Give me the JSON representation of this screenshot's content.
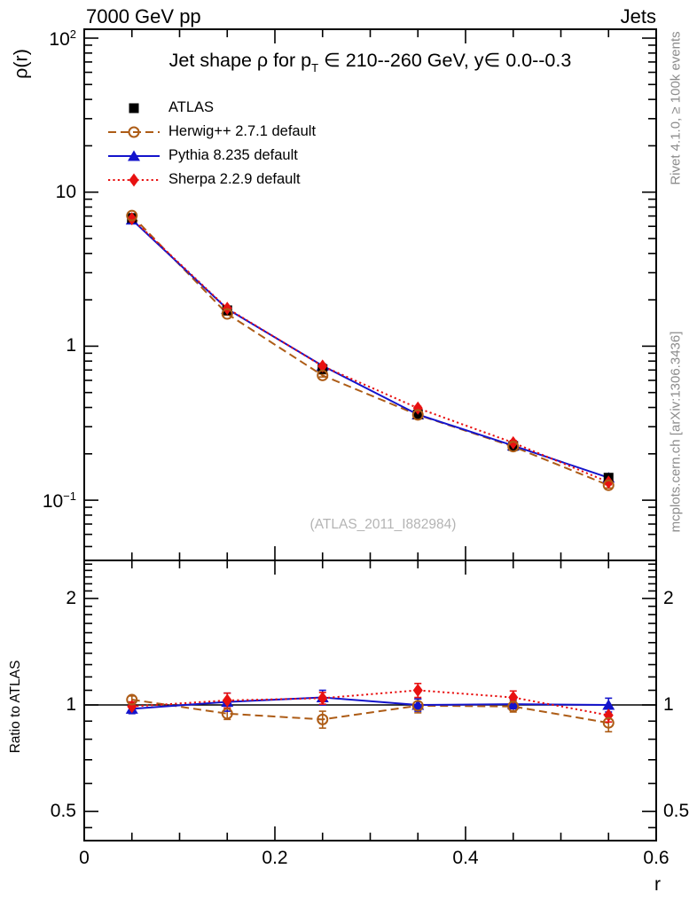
{
  "header": {
    "left": "7000 GeV pp",
    "right": "Jets"
  },
  "title": {
    "part1": "Jet shape ρ for p",
    "sub": "T",
    "part2": " ∈ 210--260 GeV, y∈ 0.0--0.3"
  },
  "watermark": "(ATLAS_2011_I882984)",
  "side_notes": {
    "top": "Rivet 4.1.0, ≥ 100k events",
    "bottom": "mcplots.cern.ch [arXiv:1306.3436]"
  },
  "colors": {
    "atlas": "#000000",
    "herwig": "#ad5c16",
    "pythia": "#1414cc",
    "sherpa": "#e81111",
    "frame": "#000000",
    "gray_note": "#8c8c8c",
    "watermark": "#b4b4b4"
  },
  "chart_data": {
    "type": "line",
    "title": "Jet shape ρ for p_T ∈ 210--260 GeV, y∈ 0.0--0.3",
    "xlabel": "r",
    "ylabel_main": "ρ(r)",
    "ylabel_ratio": "Ratio to ATLAS",
    "xlim": [
      0,
      0.6
    ],
    "x_minor_step": 0.05,
    "x_ticks": [
      {
        "value": 0,
        "label": "0"
      },
      {
        "value": 0.2,
        "label": "0.2"
      },
      {
        "value": 0.4,
        "label": "0.4"
      },
      {
        "value": 0.6,
        "label": "0.6"
      }
    ],
    "main_axis": {
      "scale": "log",
      "range": [
        0.041,
        114
      ],
      "major_ticks": [
        {
          "value": 100,
          "base": "10",
          "exp": "2"
        },
        {
          "value": 10,
          "base": "10",
          "exp": ""
        },
        {
          "value": 1,
          "base": "1",
          "exp": ""
        },
        {
          "value": 0.1,
          "base": "10",
          "exp": "−1"
        }
      ]
    },
    "ratio_axis": {
      "scale": "log",
      "range": [
        0.414,
        2.56
      ],
      "major_ticks": [
        {
          "value": 2,
          "label": "2"
        },
        {
          "value": 1,
          "label": "1"
        },
        {
          "value": 0.5,
          "label": "0.5"
        }
      ],
      "baseline": 1
    },
    "x": [
      0.05,
      0.15,
      0.25,
      0.35,
      0.45,
      0.55
    ],
    "legend_position": "top-left",
    "series": [
      {
        "name": "ATLAS",
        "marker": "square",
        "line": "none",
        "color_key": "atlas",
        "values": [
          6.8,
          1.71,
          0.71,
          0.36,
          0.225,
          0.14
        ],
        "errors": [
          0.18,
          0.05,
          0.018,
          0.01,
          0.007,
          0.005
        ]
      },
      {
        "name": "Herwig++ 2.7.1 default",
        "marker": "circle-open",
        "line": "dashed",
        "color_key": "herwig",
        "values": [
          7.04,
          1.62,
          0.646,
          0.358,
          0.223,
          0.125
        ],
        "errors": [
          0.1,
          0.03,
          0.015,
          0.009,
          0.006,
          0.005
        ],
        "ratio": [
          1.035,
          0.945,
          0.91,
          0.995,
          0.99,
          0.89
        ],
        "ratio_errors": [
          0.025,
          0.035,
          0.05,
          0.045,
          0.035,
          0.05
        ]
      },
      {
        "name": "Pythia 8.235 default",
        "marker": "triangle",
        "line": "solid",
        "color_key": "pythia",
        "values": [
          6.63,
          1.744,
          0.746,
          0.36,
          0.226,
          0.14
        ],
        "errors": [
          0.12,
          0.04,
          0.02,
          0.01,
          0.007,
          0.005
        ],
        "ratio": [
          0.975,
          1.02,
          1.05,
          1.0,
          1.005,
          1.0
        ],
        "ratio_errors": [
          0.03,
          0.06,
          0.05,
          0.04,
          0.03,
          0.045
        ]
      },
      {
        "name": "Sherpa 2.2.9 default",
        "marker": "diamond",
        "line": "dotted",
        "color_key": "sherpa",
        "values": [
          6.73,
          1.76,
          0.742,
          0.396,
          0.236,
          0.131
        ],
        "errors": [
          0.12,
          0.04,
          0.02,
          0.011,
          0.008,
          0.005
        ],
        "ratio": [
          0.99,
          1.03,
          1.045,
          1.1,
          1.05,
          0.935
        ],
        "ratio_errors": [
          0.03,
          0.05,
          0.04,
          0.05,
          0.045,
          0.04
        ]
      }
    ]
  }
}
